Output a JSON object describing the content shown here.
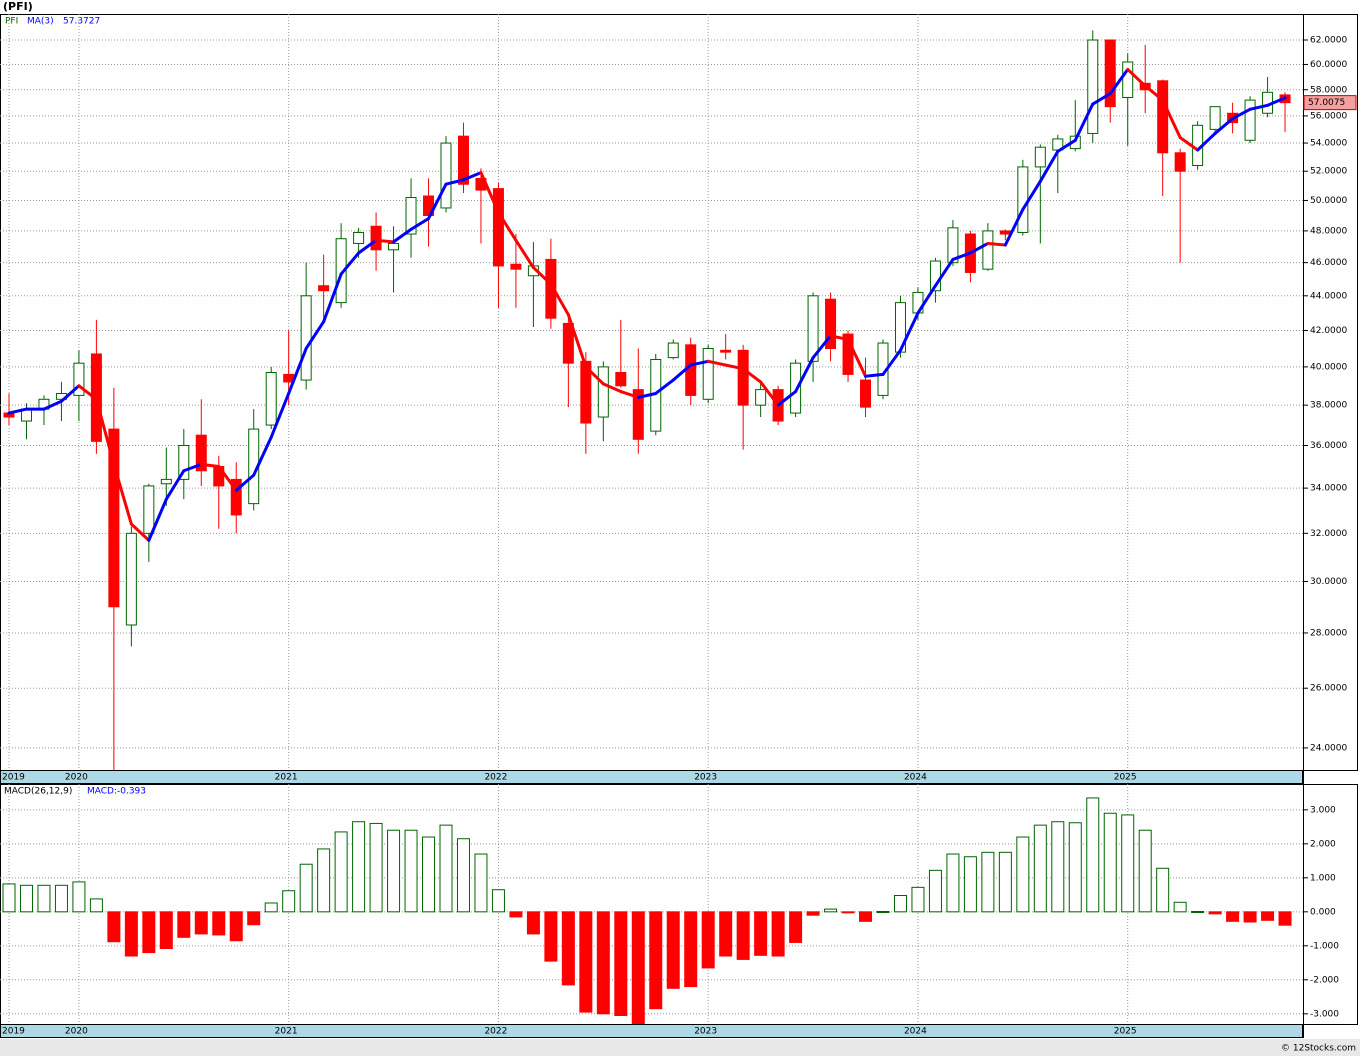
{
  "title": "(PFI)",
  "footer": "© 12Stocks.com",
  "chart_data": [
    {
      "type": "candlestick",
      "categories": [
        "2019",
        null,
        null,
        null,
        "2020",
        null,
        null,
        null,
        null,
        null,
        null,
        null,
        null,
        null,
        null,
        null,
        "2021",
        null,
        null,
        null,
        null,
        null,
        null,
        null,
        null,
        null,
        null,
        null,
        "2022",
        null,
        null,
        null,
        null,
        null,
        null,
        null,
        null,
        null,
        null,
        null,
        "2023",
        null,
        null,
        null,
        null,
        null,
        null,
        null,
        null,
        null,
        null,
        null,
        "2024",
        null,
        null,
        null,
        null,
        null,
        null,
        null,
        null,
        null,
        null,
        null,
        "2025",
        null,
        null,
        null,
        null,
        null,
        null,
        null,
        null,
        null
      ],
      "series": [
        {
          "name": "PFI",
          "up_color": "#006400",
          "down_color": "#ff0000",
          "open": [
            37.6,
            37.2,
            37.8,
            38.3,
            38.5,
            40.7,
            36.8,
            28.3,
            32.0,
            34.2,
            34.4,
            36.5,
            35.0,
            34.4,
            33.3,
            37.0,
            39.6,
            39.3,
            44.6,
            43.6,
            47.2,
            48.3,
            46.8,
            47.8,
            50.3,
            49.5,
            54.5,
            51.5,
            50.8,
            45.9,
            45.2,
            46.2,
            42.4,
            40.3,
            37.4,
            39.7,
            38.8,
            36.7,
            40.5,
            41.2,
            38.3,
            40.9,
            40.9,
            38.0,
            38.8,
            37.6,
            40.3,
            43.8,
            41.8,
            39.3,
            38.5,
            40.8,
            43.0,
            44.3,
            46.0,
            47.8,
            45.6,
            48.0,
            47.9,
            52.3,
            53.5,
            53.6,
            54.7,
            62.0,
            57.4,
            58.5,
            58.7,
            53.3,
            52.4,
            55.0,
            56.2,
            54.2,
            56.2,
            57.6
          ],
          "high": [
            38.6,
            38.1,
            38.5,
            39.2,
            40.9,
            42.6,
            38.9,
            32.3,
            34.2,
            35.9,
            36.8,
            38.3,
            35.5,
            35.2,
            37.8,
            40.0,
            42.0,
            46.0,
            46.5,
            48.5,
            48.2,
            49.2,
            48.3,
            51.5,
            51.5,
            54.5,
            55.5,
            52.2,
            51.2,
            47.8,
            47.3,
            47.5,
            43.0,
            40.8,
            40.3,
            42.6,
            41.0,
            40.7,
            41.5,
            41.6,
            41.2,
            41.8,
            41.2,
            39.2,
            39.0,
            40.4,
            44.2,
            44.2,
            42.0,
            40.5,
            41.5,
            44.0,
            44.5,
            46.3,
            48.7,
            48.0,
            48.5,
            48.1,
            52.8,
            53.9,
            54.6,
            57.2,
            62.8,
            62.0,
            60.9,
            61.6,
            58.8,
            53.6,
            55.6,
            56.7,
            57.0,
            57.5,
            59.0,
            57.8
          ],
          "low": [
            37.0,
            36.3,
            37.0,
            37.2,
            37.2,
            35.6,
            23.2,
            27.5,
            30.8,
            33.2,
            33.5,
            34.1,
            32.2,
            32.0,
            33.0,
            36.8,
            38.0,
            38.8,
            42.5,
            43.3,
            46.3,
            45.5,
            44.2,
            46.3,
            47.0,
            49.2,
            50.5,
            47.2,
            43.3,
            43.3,
            42.2,
            42.1,
            37.9,
            35.6,
            36.2,
            38.9,
            35.6,
            36.5,
            40.4,
            38.0,
            38.1,
            40.4,
            35.8,
            37.4,
            37.0,
            37.4,
            39.2,
            40.3,
            39.2,
            37.4,
            38.3,
            40.5,
            42.6,
            43.6,
            45.8,
            44.8,
            45.5,
            47.4,
            47.7,
            47.2,
            50.5,
            53.4,
            54.0,
            55.5,
            53.8,
            56.2,
            50.3,
            46.0,
            52.1,
            54.7,
            54.7,
            54.0,
            55.9,
            54.8
          ],
          "close": [
            37.4,
            37.8,
            38.3,
            38.6,
            40.2,
            36.2,
            29.0,
            32.0,
            34.1,
            34.4,
            36.0,
            34.8,
            34.1,
            32.8,
            36.8,
            39.7,
            39.2,
            44.0,
            44.3,
            47.5,
            47.9,
            46.8,
            47.2,
            50.2,
            49.0,
            54.0,
            51.1,
            50.7,
            45.8,
            45.6,
            45.8,
            42.7,
            40.2,
            37.1,
            40.0,
            39.0,
            36.3,
            40.4,
            41.3,
            38.5,
            41.0,
            40.8,
            38.0,
            38.8,
            37.2,
            40.2,
            44.0,
            41.0,
            39.6,
            37.9,
            41.3,
            43.6,
            44.2,
            46.1,
            48.2,
            45.4,
            48.0,
            47.8,
            52.3,
            53.7,
            54.3,
            54.5,
            62.0,
            56.7,
            60.2,
            58.0,
            53.3,
            52.0,
            55.3,
            56.7,
            55.5,
            57.2,
            57.8,
            57.0075
          ]
        },
        {
          "name": "MA(3)",
          "color": "#0000ff",
          "down_color": "#ff0000",
          "values": [
            37.6,
            37.8,
            37.8,
            38.2,
            39.0,
            38.3,
            35.1,
            32.4,
            31.7,
            33.5,
            34.8,
            35.1,
            35.0,
            33.9,
            34.6,
            36.4,
            38.6,
            41.0,
            42.5,
            45.3,
            46.6,
            47.4,
            47.3,
            48.1,
            48.8,
            51.1,
            51.4,
            51.9,
            49.2,
            47.4,
            45.7,
            44.7,
            42.9,
            40.0,
            39.1,
            38.7,
            38.4,
            38.6,
            39.3,
            40.1,
            40.3,
            40.1,
            39.9,
            39.2,
            38.0,
            38.7,
            40.5,
            41.7,
            41.5,
            39.5,
            39.6,
            40.9,
            43.0,
            44.6,
            46.2,
            46.6,
            47.2,
            47.1,
            49.4,
            51.3,
            53.4,
            54.2,
            56.9,
            57.7,
            59.6,
            58.3,
            57.2,
            54.4,
            53.5,
            54.7,
            55.8,
            56.5,
            56.8,
            57.3727
          ]
        }
      ],
      "ylim": [
        23.3,
        64.2
      ],
      "log_scale": true,
      "grid": true,
      "yticks": [
        {
          "value": 24,
          "label": "24.0000"
        },
        {
          "value": 26,
          "label": "26.0000"
        },
        {
          "value": 28,
          "label": "28.0000"
        },
        {
          "value": 30,
          "label": "30.0000"
        },
        {
          "value": 32,
          "label": "32.0000"
        },
        {
          "value": 34,
          "label": "34.0000"
        },
        {
          "value": 36,
          "label": "36.0000"
        },
        {
          "value": 38,
          "label": "38.0000"
        },
        {
          "value": 40,
          "label": "40.0000"
        },
        {
          "value": 42,
          "label": "42.0000"
        },
        {
          "value": 44,
          "label": "44.0000"
        },
        {
          "value": 46,
          "label": "46.0000"
        },
        {
          "value": 48,
          "label": "48.0000"
        },
        {
          "value": 50,
          "label": "50.0000"
        },
        {
          "value": 52,
          "label": "52.0000"
        },
        {
          "value": 54,
          "label": "54.0000"
        },
        {
          "value": 56,
          "label": "56.0000"
        },
        {
          "value": 58,
          "label": "58.0000"
        },
        {
          "value": 60,
          "label": "60.0000"
        },
        {
          "value": 62,
          "label": "62.0000"
        }
      ]
    },
    {
      "type": "bar",
      "title": "MACD(26,12,9)",
      "value_caption": "MACD:",
      "categories": [
        "2019",
        null,
        null,
        null,
        "2020",
        null,
        null,
        null,
        null,
        null,
        null,
        null,
        null,
        null,
        null,
        null,
        "2021",
        null,
        null,
        null,
        null,
        null,
        null,
        null,
        null,
        null,
        null,
        null,
        "2022",
        null,
        null,
        null,
        null,
        null,
        null,
        null,
        null,
        null,
        null,
        null,
        "2023",
        null,
        null,
        null,
        null,
        null,
        null,
        null,
        null,
        null,
        null,
        null,
        "2024",
        null,
        null,
        null,
        null,
        null,
        null,
        null,
        null,
        null,
        null,
        null,
        "2025",
        null,
        null,
        null,
        null,
        null,
        null,
        null,
        null,
        null
      ],
      "values": [
        0.82,
        0.78,
        0.78,
        0.78,
        0.88,
        0.38,
        -0.88,
        -1.3,
        -1.2,
        -1.08,
        -0.75,
        -0.65,
        -0.68,
        -0.85,
        -0.38,
        0.26,
        0.62,
        1.4,
        1.85,
        2.35,
        2.65,
        2.6,
        2.4,
        2.4,
        2.2,
        2.55,
        2.15,
        1.7,
        0.65,
        -0.15,
        -0.65,
        -1.45,
        -2.15,
        -2.95,
        -3.0,
        -3.05,
        -3.35,
        -2.85,
        -2.25,
        -2.2,
        -1.65,
        -1.3,
        -1.4,
        -1.28,
        -1.3,
        -0.9,
        -0.1,
        0.08,
        -0.03,
        -0.28,
        0.01,
        0.48,
        0.72,
        1.22,
        1.7,
        1.62,
        1.75,
        1.75,
        2.2,
        2.55,
        2.65,
        2.62,
        3.35,
        2.9,
        2.85,
        2.4,
        1.28,
        0.28,
        0.01,
        -0.06,
        -0.28,
        -0.3,
        -0.25,
        -0.393
      ],
      "up_color": "#006400",
      "down_color": "#ff0000",
      "caption_color": "#0000ff",
      "ylim": [
        -3.3,
        3.76
      ],
      "grid": true,
      "yticks": [
        {
          "value": 3,
          "label": "3.000"
        },
        {
          "value": 2,
          "label": "2.000"
        },
        {
          "value": 1,
          "label": "1.000"
        },
        {
          "value": 0,
          "label": "0.000"
        },
        {
          "value": -1,
          "label": "-1.000"
        },
        {
          "value": -2,
          "label": "-2.000"
        },
        {
          "value": -3,
          "label": "-3.000"
        }
      ]
    }
  ]
}
